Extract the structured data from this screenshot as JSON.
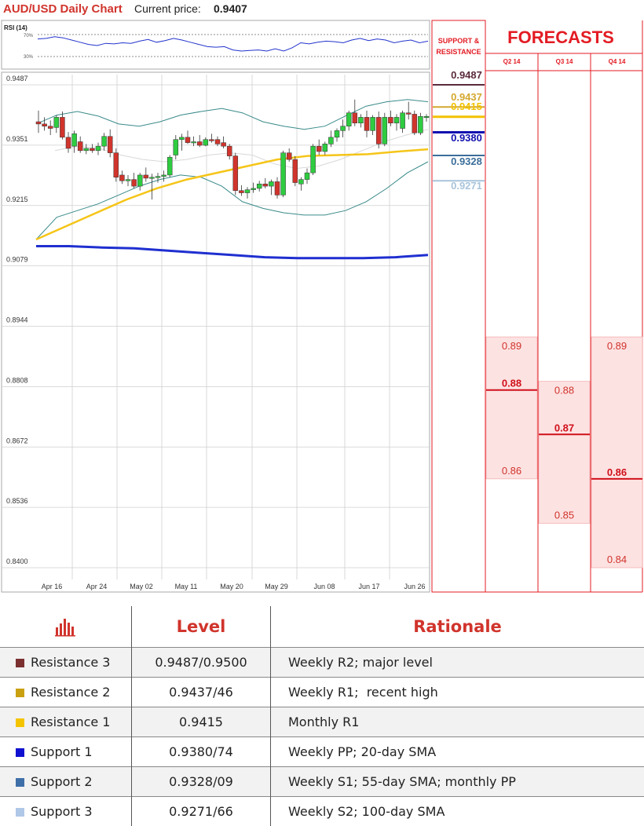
{
  "header": {
    "title": "AUD/USD Daily Chart",
    "price_label": "Current price:",
    "price_value": "0.9407"
  },
  "rsi": {
    "label": "RSI (14)",
    "level_high": "70%",
    "level_low": "30%"
  },
  "chart_data": [
    {
      "type": "candlestick",
      "title": "AUD/USD Daily Chart",
      "ylim": [
        0.84,
        0.9487
      ],
      "y_ticks": [
        "0.9487",
        "0.9351",
        "0.9215",
        "0.9079",
        "0.8944",
        "0.8808",
        "0.8672",
        "0.8536",
        "0.8400"
      ],
      "x_ticks": [
        "Apr 16",
        "Apr 24",
        "May 02",
        "May 11",
        "May 20",
        "May 29",
        "Jun 08",
        "Jun 17",
        "Jun 26"
      ],
      "candles": [
        {
          "o": 0.9395,
          "h": 0.942,
          "l": 0.937,
          "c": 0.939
        },
        {
          "o": 0.939,
          "h": 0.9405,
          "l": 0.9375,
          "c": 0.9385
        },
        {
          "o": 0.9385,
          "h": 0.9398,
          "l": 0.9365,
          "c": 0.938
        },
        {
          "o": 0.9382,
          "h": 0.941,
          "l": 0.937,
          "c": 0.9405
        },
        {
          "o": 0.9405,
          "h": 0.9418,
          "l": 0.9355,
          "c": 0.936
        },
        {
          "o": 0.936,
          "h": 0.9372,
          "l": 0.9325,
          "c": 0.9335
        },
        {
          "o": 0.934,
          "h": 0.9375,
          "l": 0.9325,
          "c": 0.9368
        },
        {
          "o": 0.935,
          "h": 0.9362,
          "l": 0.9325,
          "c": 0.933
        },
        {
          "o": 0.933,
          "h": 0.9345,
          "l": 0.9322,
          "c": 0.9335
        },
        {
          "o": 0.9335,
          "h": 0.9345,
          "l": 0.9325,
          "c": 0.933
        },
        {
          "o": 0.933,
          "h": 0.9348,
          "l": 0.932,
          "c": 0.934
        },
        {
          "o": 0.934,
          "h": 0.937,
          "l": 0.933,
          "c": 0.9362
        },
        {
          "o": 0.9362,
          "h": 0.9378,
          "l": 0.9315,
          "c": 0.9325
        },
        {
          "o": 0.9325,
          "h": 0.9335,
          "l": 0.926,
          "c": 0.927
        },
        {
          "o": 0.9275,
          "h": 0.9285,
          "l": 0.9255,
          "c": 0.9262
        },
        {
          "o": 0.9262,
          "h": 0.9275,
          "l": 0.925,
          "c": 0.9265
        },
        {
          "o": 0.9265,
          "h": 0.928,
          "l": 0.9245,
          "c": 0.925
        },
        {
          "o": 0.925,
          "h": 0.928,
          "l": 0.924,
          "c": 0.9275
        },
        {
          "o": 0.9275,
          "h": 0.9292,
          "l": 0.926,
          "c": 0.9268
        },
        {
          "o": 0.9268,
          "h": 0.9278,
          "l": 0.922,
          "c": 0.927
        },
        {
          "o": 0.927,
          "h": 0.928,
          "l": 0.9258,
          "c": 0.9272
        },
        {
          "o": 0.9272,
          "h": 0.9285,
          "l": 0.926,
          "c": 0.9275
        },
        {
          "o": 0.9275,
          "h": 0.932,
          "l": 0.927,
          "c": 0.9315
        },
        {
          "o": 0.932,
          "h": 0.9365,
          "l": 0.931,
          "c": 0.9355
        },
        {
          "o": 0.9355,
          "h": 0.9368,
          "l": 0.933,
          "c": 0.936
        },
        {
          "o": 0.936,
          "h": 0.9375,
          "l": 0.9345,
          "c": 0.9348
        },
        {
          "o": 0.9348,
          "h": 0.9362,
          "l": 0.934,
          "c": 0.935
        },
        {
          "o": 0.935,
          "h": 0.9365,
          "l": 0.9338,
          "c": 0.9342
        },
        {
          "o": 0.9342,
          "h": 0.936,
          "l": 0.934,
          "c": 0.9355
        },
        {
          "o": 0.9355,
          "h": 0.9368,
          "l": 0.9348,
          "c": 0.9352
        },
        {
          "o": 0.9355,
          "h": 0.9362,
          "l": 0.934,
          "c": 0.9345
        },
        {
          "o": 0.9348,
          "h": 0.9362,
          "l": 0.9335,
          "c": 0.934
        },
        {
          "o": 0.934,
          "h": 0.9345,
          "l": 0.931,
          "c": 0.9318
        },
        {
          "o": 0.9318,
          "h": 0.9325,
          "l": 0.923,
          "c": 0.924
        },
        {
          "o": 0.924,
          "h": 0.9252,
          "l": 0.9228,
          "c": 0.9235
        },
        {
          "o": 0.9235,
          "h": 0.9248,
          "l": 0.9222,
          "c": 0.9242
        },
        {
          "o": 0.9242,
          "h": 0.9258,
          "l": 0.9235,
          "c": 0.9245
        },
        {
          "o": 0.9245,
          "h": 0.9262,
          "l": 0.9238,
          "c": 0.9255
        },
        {
          "o": 0.9255,
          "h": 0.9268,
          "l": 0.9245,
          "c": 0.925
        },
        {
          "o": 0.925,
          "h": 0.9265,
          "l": 0.923,
          "c": 0.926
        },
        {
          "o": 0.926,
          "h": 0.927,
          "l": 0.9222,
          "c": 0.923
        },
        {
          "o": 0.923,
          "h": 0.933,
          "l": 0.9225,
          "c": 0.9325
        },
        {
          "o": 0.9325,
          "h": 0.9335,
          "l": 0.9305,
          "c": 0.931
        },
        {
          "o": 0.931,
          "h": 0.9318,
          "l": 0.925,
          "c": 0.9258
        },
        {
          "o": 0.9255,
          "h": 0.927,
          "l": 0.924,
          "c": 0.9265
        },
        {
          "o": 0.9265,
          "h": 0.929,
          "l": 0.9255,
          "c": 0.928
        },
        {
          "o": 0.928,
          "h": 0.9345,
          "l": 0.9275,
          "c": 0.934
        },
        {
          "o": 0.934,
          "h": 0.9355,
          "l": 0.932,
          "c": 0.9328
        },
        {
          "o": 0.9328,
          "h": 0.935,
          "l": 0.932,
          "c": 0.9345
        },
        {
          "o": 0.9345,
          "h": 0.9375,
          "l": 0.9338,
          "c": 0.936
        },
        {
          "o": 0.936,
          "h": 0.938,
          "l": 0.935,
          "c": 0.9375
        },
        {
          "o": 0.9375,
          "h": 0.94,
          "l": 0.936,
          "c": 0.9385
        },
        {
          "o": 0.9385,
          "h": 0.942,
          "l": 0.9375,
          "c": 0.9415
        },
        {
          "o": 0.9415,
          "h": 0.9445,
          "l": 0.9385,
          "c": 0.9392
        },
        {
          "o": 0.9392,
          "h": 0.9412,
          "l": 0.9382,
          "c": 0.9405
        },
        {
          "o": 0.9405,
          "h": 0.942,
          "l": 0.936,
          "c": 0.9375
        },
        {
          "o": 0.9375,
          "h": 0.941,
          "l": 0.9365,
          "c": 0.9405
        },
        {
          "o": 0.9405,
          "h": 0.9418,
          "l": 0.9335,
          "c": 0.9345
        },
        {
          "o": 0.9345,
          "h": 0.9415,
          "l": 0.934,
          "c": 0.9405
        },
        {
          "o": 0.9405,
          "h": 0.942,
          "l": 0.9385,
          "c": 0.9392
        },
        {
          "o": 0.9392,
          "h": 0.9412,
          "l": 0.9375,
          "c": 0.9405
        },
        {
          "o": 0.938,
          "h": 0.942,
          "l": 0.937,
          "c": 0.9415
        },
        {
          "o": 0.9415,
          "h": 0.944,
          "l": 0.94,
          "c": 0.9412
        },
        {
          "o": 0.9412,
          "h": 0.942,
          "l": 0.9365,
          "c": 0.937
        },
        {
          "o": 0.937,
          "h": 0.9415,
          "l": 0.9365,
          "c": 0.9407
        },
        {
          "o": 0.9407,
          "h": 0.9412,
          "l": 0.9395,
          "c": 0.9407
        }
      ],
      "sma_fast": [
        0.913,
        0.916,
        0.919,
        0.922,
        0.9245,
        0.9265,
        0.928,
        0.9295,
        0.931,
        0.9318,
        0.932,
        0.9322,
        0.9328,
        0.9333
      ],
      "sma_slow": [
        0.9115,
        0.9115,
        0.9112,
        0.911,
        0.9105,
        0.91,
        0.9095,
        0.909,
        0.9088,
        0.9088,
        0.9088,
        0.909,
        0.9095
      ],
      "bb_upper": [
        0.939,
        0.941,
        0.9418,
        0.9408,
        0.939,
        0.9385,
        0.9395,
        0.941,
        0.9418,
        0.9425,
        0.9415,
        0.9395,
        0.9385,
        0.9378,
        0.9385,
        0.9408,
        0.943,
        0.944,
        0.9445,
        0.944
      ],
      "bb_lower": [
        0.913,
        0.918,
        0.9195,
        0.921,
        0.923,
        0.925,
        0.9265,
        0.9275,
        0.927,
        0.925,
        0.9215,
        0.92,
        0.919,
        0.9185,
        0.9185,
        0.9195,
        0.9215,
        0.9245,
        0.928,
        0.9305
      ],
      "bb_mid": [
        0.933,
        0.934,
        0.9335,
        0.932,
        0.931,
        0.9305,
        0.931,
        0.932,
        0.9325,
        0.932,
        0.93,
        0.929,
        0.9295,
        0.931,
        0.933,
        0.935,
        0.9365,
        0.9378
      ],
      "rsi_values": [
        62,
        63,
        66,
        64,
        60,
        56,
        52,
        50,
        54,
        53,
        55,
        54,
        58,
        61,
        56,
        59,
        63,
        60,
        56,
        52,
        48,
        47,
        48,
        42,
        40,
        41,
        42,
        40,
        44,
        40,
        46,
        55,
        53,
        56,
        58,
        57,
        55,
        60,
        63,
        59,
        62,
        60,
        55,
        58,
        60,
        55,
        58
      ]
    },
    {
      "type": "table",
      "title": "SUPPORT & RESISTANCE",
      "levels": [
        {
          "label": "0.9487",
          "value": 0.9487,
          "color": "#5b2a3c",
          "thick": false
        },
        {
          "label": "0.9437",
          "value": 0.9437,
          "color": "#d4a82e",
          "thick": false
        },
        {
          "label": "0.9415",
          "value": 0.9415,
          "color": "#f2c200",
          "thick": true
        },
        {
          "label": "0.9380",
          "value": 0.938,
          "color": "#1010b0",
          "thick": true
        },
        {
          "label": "0.9328",
          "value": 0.9328,
          "color": "#3b6e9a",
          "thick": false
        },
        {
          "label": "0.9271",
          "value": 0.9271,
          "color": "#a8c4dc",
          "thick": false
        }
      ]
    },
    {
      "type": "range",
      "title": "FORECASTS",
      "categories": [
        "Q2 14",
        "Q3 14",
        "Q4 14"
      ],
      "high": [
        0.89,
        0.88,
        0.89
      ],
      "mid": [
        0.88,
        0.87,
        0.86
      ],
      "low": [
        0.86,
        0.85,
        0.84
      ],
      "high_labels": [
        "0.89",
        "0.88",
        "0.89"
      ],
      "mid_labels": [
        "0.88",
        "0.87",
        "0.86"
      ],
      "low_labels": [
        "0.86",
        "0.85",
        "0.84"
      ]
    }
  ],
  "table": {
    "col_level": "Level",
    "col_rationale": "Rationale",
    "rows": [
      {
        "name": "Resistance 3",
        "level": "0.9487/0.9500",
        "rationale": "Weekly R2; major level",
        "color": "#7b2f2f"
      },
      {
        "name": "Resistance 2",
        "level": "0.9437/46",
        "rationale": "Weekly R1;  recent high",
        "color": "#c9a010"
      },
      {
        "name": "Resistance 1",
        "level": "0.9415",
        "rationale": "Monthly R1",
        "color": "#f5c400"
      },
      {
        "name": "Support 1",
        "level": "0.9380/74",
        "rationale": "Weekly PP; 20-day SMA",
        "color": "#1010d0"
      },
      {
        "name": "Support 2",
        "level": "0.9328/09",
        "rationale": "Weekly S1; 55-day SMA; monthly PP",
        "color": "#3f6fa8"
      },
      {
        "name": "Support 3",
        "level": "0.9271/66",
        "rationale": "Weekly S2; 100-day SMA",
        "color": "#b0c8e8"
      }
    ]
  },
  "colors": {
    "accent_red": "#e31b23",
    "bull": "#2ecc40",
    "bear": "#d0342c",
    "sma_fast": "#f5c518",
    "sma_slow": "#1f2fd0",
    "bands": "#3a8a8a",
    "forecast_fill": "#fde2e2"
  }
}
